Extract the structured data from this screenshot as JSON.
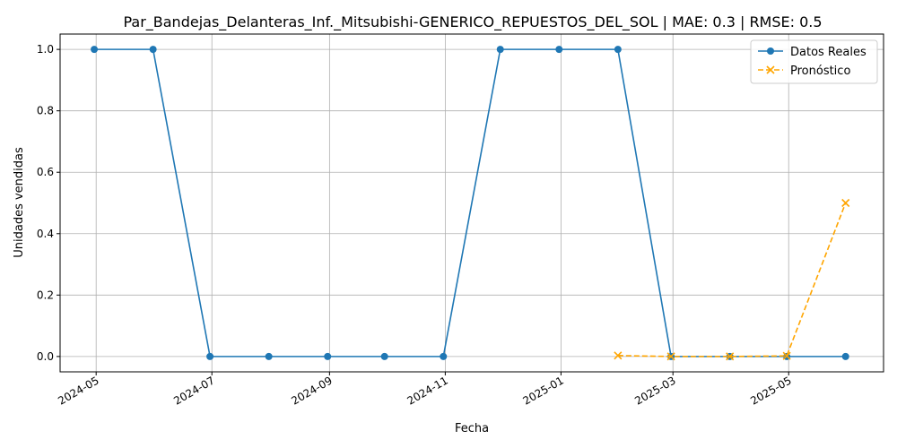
{
  "chart_data": {
    "type": "line",
    "title": "Par_Bandejas_Delanteras_Inf._Mitsubishi-GENERICO_REPUESTOS_DEL_SOL | MAE: 0.3 | RMSE: 0.5",
    "xlabel": "Fecha",
    "ylabel": "Unidades vendidas",
    "ylim": [
      -0.05,
      1.05
    ],
    "yticks": [
      0.0,
      0.2,
      0.4,
      0.6,
      0.8,
      1.0
    ],
    "ytick_labels": [
      "0.0",
      "0.2",
      "0.4",
      "0.6",
      "0.8",
      "1.0"
    ],
    "xticks": [
      "2024-05-01",
      "2024-07-01",
      "2024-09-01",
      "2024-11-01",
      "2025-01-01",
      "2025-03-01",
      "2025-05-01"
    ],
    "xtick_labels": [
      "2024-05",
      "2024-07",
      "2024-09",
      "2024-11",
      "2025-01",
      "2025-03",
      "2025-05"
    ],
    "xlim": [
      "2024-04-12",
      "2025-06-20"
    ],
    "grid": true,
    "legend_position": "top-right",
    "series": [
      {
        "name": "Datos Reales",
        "color": "#1f77b4",
        "marker": "circle",
        "style": "solid",
        "x": [
          "2024-04-30",
          "2024-05-31",
          "2024-06-30",
          "2024-07-31",
          "2024-08-31",
          "2024-09-30",
          "2024-10-31",
          "2024-11-30",
          "2024-12-31",
          "2025-01-31",
          "2025-02-28",
          "2025-03-31",
          "2025-04-30",
          "2025-05-31"
        ],
        "values": [
          1,
          1,
          0,
          0,
          0,
          0,
          0,
          1,
          1,
          1,
          0,
          0,
          0,
          0
        ]
      },
      {
        "name": "Pronóstico",
        "color": "#ffa500",
        "marker": "x",
        "style": "dashed",
        "x": [
          "2025-01-31",
          "2025-02-28",
          "2025-03-31",
          "2025-04-30",
          "2025-05-31"
        ],
        "values": [
          0.003,
          0.0,
          0.0,
          0.002,
          0.5
        ]
      }
    ]
  }
}
